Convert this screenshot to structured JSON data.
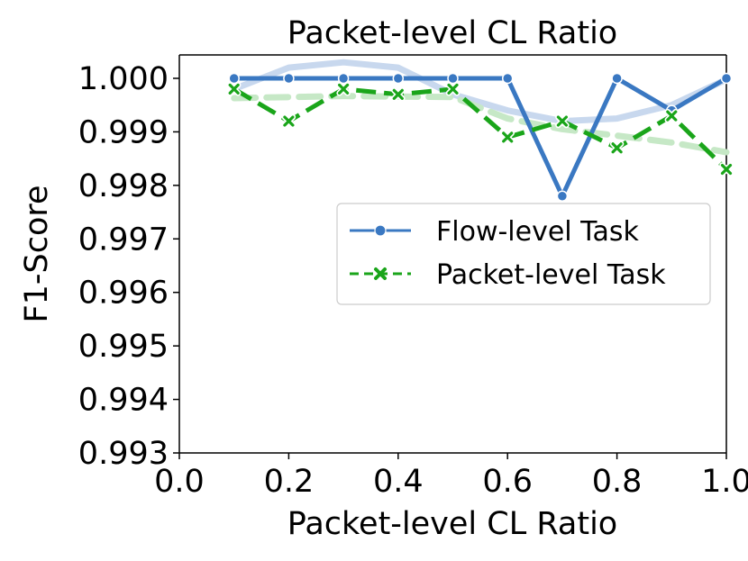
{
  "chart_data": {
    "type": "line",
    "title": "Packet-level CL Ratio",
    "xlabel": "Packet-level CL Ratio",
    "ylabel": "F1-Score",
    "xlim": [
      0.0,
      1.0
    ],
    "ylim": [
      0.993,
      1.0
    ],
    "xticks": [
      "0.0",
      "0.2",
      "0.4",
      "0.6",
      "0.8",
      "1.0"
    ],
    "xtick_values": [
      0.0,
      0.2,
      0.4,
      0.6,
      0.8,
      1.0
    ],
    "yticks": [
      "0.993",
      "0.994",
      "0.995",
      "0.996",
      "0.997",
      "0.998",
      "0.999",
      "1.000"
    ],
    "ytick_values": [
      0.993,
      0.994,
      0.995,
      0.996,
      0.997,
      0.998,
      0.999,
      1.0
    ],
    "grid": false,
    "legend_position": "center-right",
    "x": [
      0.1,
      0.2,
      0.3,
      0.4,
      0.5,
      0.6,
      0.7,
      0.8,
      0.9,
      1.0
    ],
    "series": [
      {
        "name": "Flow-level Task",
        "color": "#3a78c2",
        "marker": "circle",
        "linestyle": "solid",
        "values": [
          1.0,
          1.0,
          1.0,
          1.0,
          1.0,
          1.0,
          0.9978,
          1.0,
          0.9994,
          1.0
        ],
        "trend": [
          0.9998,
          1.0002,
          1.0003,
          1.0002,
          0.9997,
          0.9994,
          0.9992,
          0.99925,
          0.9995,
          0.99998
        ],
        "trend_color": "#c8d8ee"
      },
      {
        "name": "Packet-level Task",
        "color": "#1aa51a",
        "marker": "x",
        "linestyle": "dashed",
        "values": [
          0.9998,
          0.9992,
          0.9998,
          0.9997,
          0.9998,
          0.9989,
          0.9992,
          0.9987,
          0.9993,
          0.9983
        ],
        "trend": [
          0.99963,
          0.99965,
          0.99967,
          0.99966,
          0.99965,
          0.99925,
          0.99905,
          0.99893,
          0.9988,
          0.99862
        ],
        "trend_color": "#c6e8c6"
      }
    ]
  }
}
